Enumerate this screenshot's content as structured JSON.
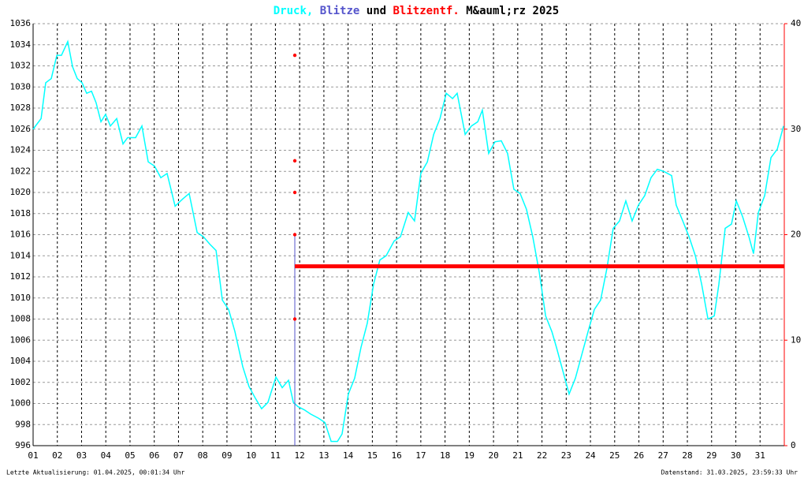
{
  "chart_data": {
    "type": "line",
    "title_connector": "und",
    "title_month": "M&auml;rz 2025",
    "footer_left": "Letzte Aktualisierung: 01.04.2025, 00:01:34 Uhr",
    "footer_right": "Datenstand: 31.03.2025, 23:59:33 Uhr",
    "xlim": [
      0,
      31
    ],
    "xticks": [
      {
        "value": 0,
        "label": "01"
      },
      {
        "value": 1,
        "label": "02"
      },
      {
        "value": 2,
        "label": "03"
      },
      {
        "value": 3,
        "label": "04"
      },
      {
        "value": 4,
        "label": "05"
      },
      {
        "value": 5,
        "label": "06"
      },
      {
        "value": 6,
        "label": "07"
      },
      {
        "value": 7,
        "label": "08"
      },
      {
        "value": 8,
        "label": "09"
      },
      {
        "value": 9,
        "label": "10"
      },
      {
        "value": 10,
        "label": "11"
      },
      {
        "value": 11,
        "label": "12"
      },
      {
        "value": 12,
        "label": "13"
      },
      {
        "value": 13,
        "label": "14"
      },
      {
        "value": 14,
        "label": "15"
      },
      {
        "value": 15,
        "label": "16"
      },
      {
        "value": 16,
        "label": "17"
      },
      {
        "value": 17,
        "label": "18"
      },
      {
        "value": 18,
        "label": "19"
      },
      {
        "value": 19,
        "label": "20"
      },
      {
        "value": 20,
        "label": "21"
      },
      {
        "value": 21,
        "label": "22"
      },
      {
        "value": 22,
        "label": "23"
      },
      {
        "value": 23,
        "label": "24"
      },
      {
        "value": 24,
        "label": "25"
      },
      {
        "value": 25,
        "label": "26"
      },
      {
        "value": 26,
        "label": "27"
      },
      {
        "value": 27,
        "label": "28"
      },
      {
        "value": 28,
        "label": "29"
      },
      {
        "value": 29,
        "label": "30"
      },
      {
        "value": 30,
        "label": "31"
      }
    ],
    "ylim": [
      996,
      1036
    ],
    "yticks": [
      996,
      998,
      1000,
      1002,
      1004,
      1006,
      1008,
      1010,
      1012,
      1014,
      1016,
      1018,
      1020,
      1022,
      1024,
      1026,
      1028,
      1030,
      1032,
      1034,
      1036
    ],
    "y2lim": [
      0,
      40
    ],
    "y2ticks": [
      0,
      10,
      20,
      30,
      40
    ],
    "y2color": "#ff0000",
    "grid": true,
    "series": [
      {
        "name": "Druck,",
        "type": "line",
        "color": "#00ffff",
        "x": [
          0,
          0.33,
          0.52,
          0.75,
          0.98,
          1.17,
          1.43,
          1.63,
          1.82,
          2.02,
          2.21,
          2.41,
          2.6,
          2.8,
          2.99,
          3.19,
          3.45,
          3.71,
          3.9,
          4.23,
          4.49,
          4.75,
          5.01,
          5.27,
          5.53,
          5.86,
          6.18,
          6.44,
          6.77,
          7.03,
          7.29,
          7.55,
          7.81,
          8.07,
          8.33,
          8.65,
          8.91,
          9.17,
          9.43,
          9.69,
          10.02,
          10.28,
          10.54,
          10.74,
          10.93,
          11.19,
          11.45,
          11.78,
          12.04,
          12.3,
          12.56,
          12.75,
          13.01,
          13.27,
          13.53,
          13.79,
          14.05,
          14.31,
          14.57,
          14.9,
          15.16,
          15.48,
          15.74,
          16,
          16.27,
          16.53,
          16.79,
          17.05,
          17.31,
          17.5,
          17.83,
          18.09,
          18.35,
          18.54,
          18.8,
          19.06,
          19.32,
          19.58,
          19.84,
          20.1,
          20.36,
          20.62,
          20.89,
          21.15,
          21.41,
          21.6,
          21.86,
          22.12,
          22.38,
          22.64,
          22.9,
          23.16,
          23.42,
          23.68,
          23.94,
          24.2,
          24.46,
          24.72,
          24.98,
          25.24,
          25.5,
          25.76,
          26.02,
          26.35,
          26.54,
          26.81,
          27.07,
          27.33,
          27.59,
          27.85,
          28.11,
          28.3,
          28.56,
          28.82,
          29.02,
          29.28,
          29.54,
          29.73,
          29.93,
          30.19,
          30.45,
          30.71,
          30.97
        ],
        "values": [
          1026,
          1027,
          1030.4,
          1030.8,
          1033,
          1033,
          1034.3,
          1031.9,
          1030.8,
          1030.4,
          1029.4,
          1029.6,
          1028.5,
          1026.7,
          1027.4,
          1026.3,
          1027,
          1024.6,
          1025.2,
          1025.2,
          1026.3,
          1022.9,
          1022.5,
          1021.4,
          1021.8,
          1018.7,
          1019.4,
          1019.9,
          1016.2,
          1015.8,
          1015.1,
          1014.5,
          1009.8,
          1008.9,
          1006.8,
          1003.5,
          1001.6,
          1000.5,
          999.5,
          1000.1,
          1002.5,
          1001.5,
          1002.2,
          1000.1,
          999.7,
          999.4,
          999,
          998.6,
          998.2,
          996.4,
          996.4,
          997.1,
          1000.9,
          1002.4,
          1005.3,
          1007.6,
          1011.3,
          1013.6,
          1014,
          1015.4,
          1015.8,
          1018.1,
          1017.3,
          1021.8,
          1022.9,
          1025.5,
          1027,
          1029.4,
          1028.9,
          1029.4,
          1025.5,
          1026.3,
          1026.7,
          1027.8,
          1023.7,
          1024.8,
          1024.9,
          1023.7,
          1020.3,
          1019.9,
          1018.4,
          1015.8,
          1012.4,
          1008.3,
          1006.8,
          1005.3,
          1003.1,
          1000.9,
          1002.4,
          1004.6,
          1006.8,
          1008.9,
          1009.8,
          1012.8,
          1016.6,
          1017.3,
          1019.2,
          1017.3,
          1018.8,
          1019.7,
          1021.4,
          1022.2,
          1022,
          1021.6,
          1018.8,
          1017.3,
          1015.8,
          1014,
          1011.3,
          1008,
          1008.3,
          1011.3,
          1016.6,
          1017,
          1019.2,
          1017.7,
          1015.8,
          1014.2,
          1018.1,
          1019.7,
          1023.3,
          1024.1,
          1026.3
        ]
      },
      {
        "name": "Blitze",
        "type": "bar",
        "axis": "y2",
        "color": "#5555cc",
        "x": [
          10.8
        ],
        "values": [
          20
        ]
      },
      {
        "name": "Blitzentf.",
        "type": "scatter",
        "axis": "y2",
        "color": "#ff0000",
        "x": [
          10.8,
          10.8,
          10.8,
          10.8,
          10.8
        ],
        "values": [
          37,
          27,
          24,
          20,
          12
        ]
      },
      {
        "type": "line",
        "axis": "y2",
        "color": "#ff0000",
        "width": 5,
        "x": [
          10.8,
          31
        ],
        "values": [
          17,
          17
        ]
      }
    ]
  }
}
